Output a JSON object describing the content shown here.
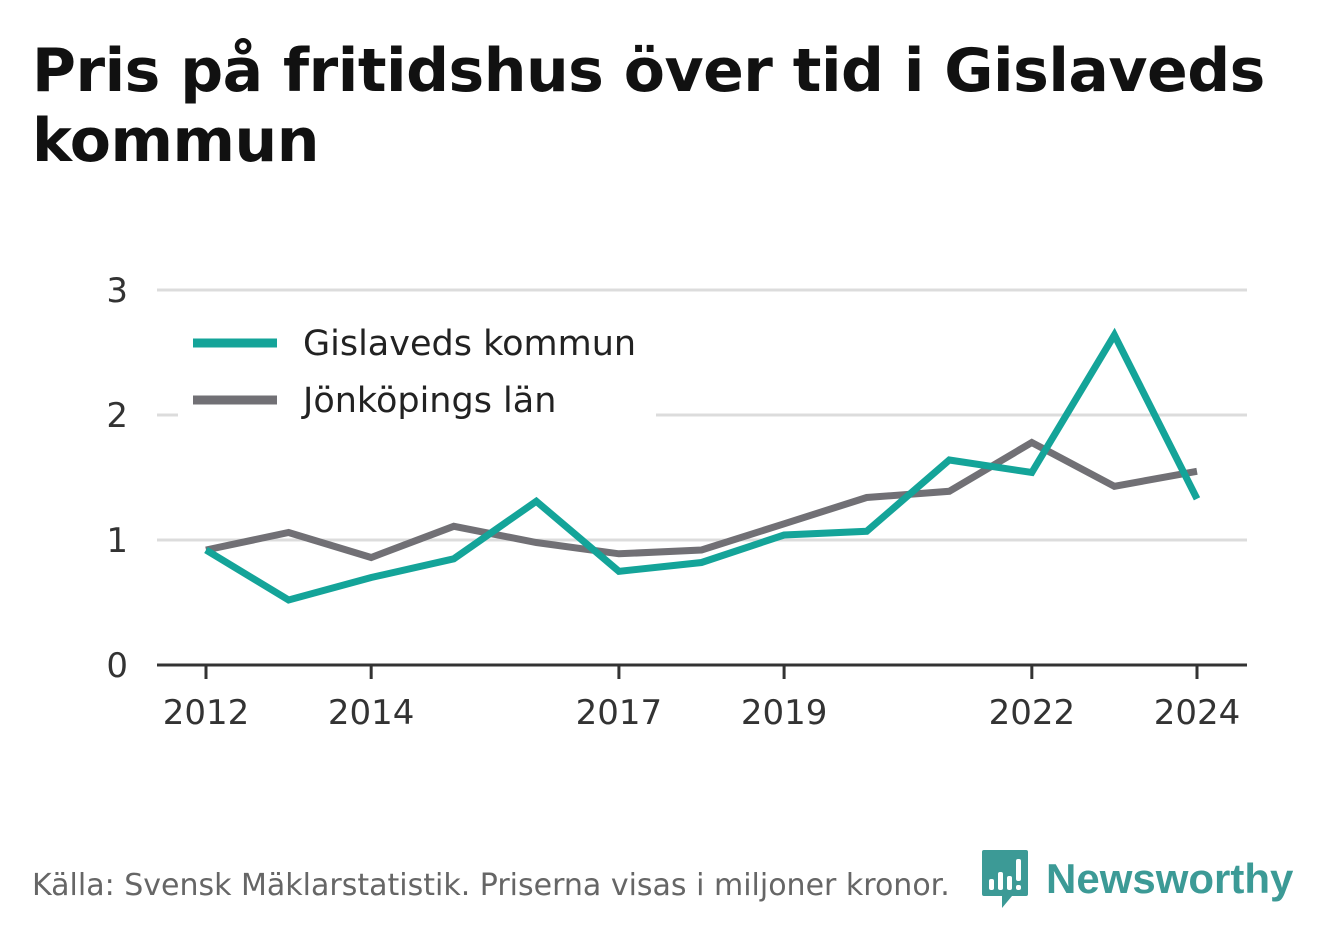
{
  "chart_title": "Pris på fritidshus över tid i Gislaveds kommun",
  "source_note": "Källa: Svensk Mäklarstatistik. Priserna visas i miljoner kronor.",
  "brand": {
    "name": "Newsworthy",
    "logo_icon": "bar-chart-speech-bubble-icon",
    "color": "#3c9a96"
  },
  "chart_data": {
    "type": "line",
    "title": "Pris på fritidshus över tid i Gislaveds kommun",
    "xlabel": "",
    "ylabel": "",
    "x": [
      2012,
      2013,
      2014,
      2015,
      2016,
      2017,
      2018,
      2019,
      2020,
      2021,
      2022,
      2023,
      2024
    ],
    "x_ticks": [
      "2012",
      "2014",
      "2017",
      "2019",
      "2022",
      "2024"
    ],
    "y_ticks": [
      "0",
      "1",
      "2",
      "3"
    ],
    "ylim": [
      0,
      3
    ],
    "grid": true,
    "legend_position": "top-left",
    "series": [
      {
        "name": "Gislaveds kommun",
        "color": "#14a499",
        "values": [
          0.92,
          0.52,
          0.7,
          0.85,
          1.31,
          0.75,
          0.82,
          1.04,
          1.07,
          1.64,
          1.54,
          2.64,
          1.33
        ]
      },
      {
        "name": "Jönköpings län",
        "color": "#717075",
        "values": [
          0.92,
          1.06,
          0.86,
          1.11,
          0.98,
          0.89,
          0.92,
          1.13,
          1.34,
          1.39,
          1.78,
          1.43,
          1.55
        ]
      }
    ]
  }
}
